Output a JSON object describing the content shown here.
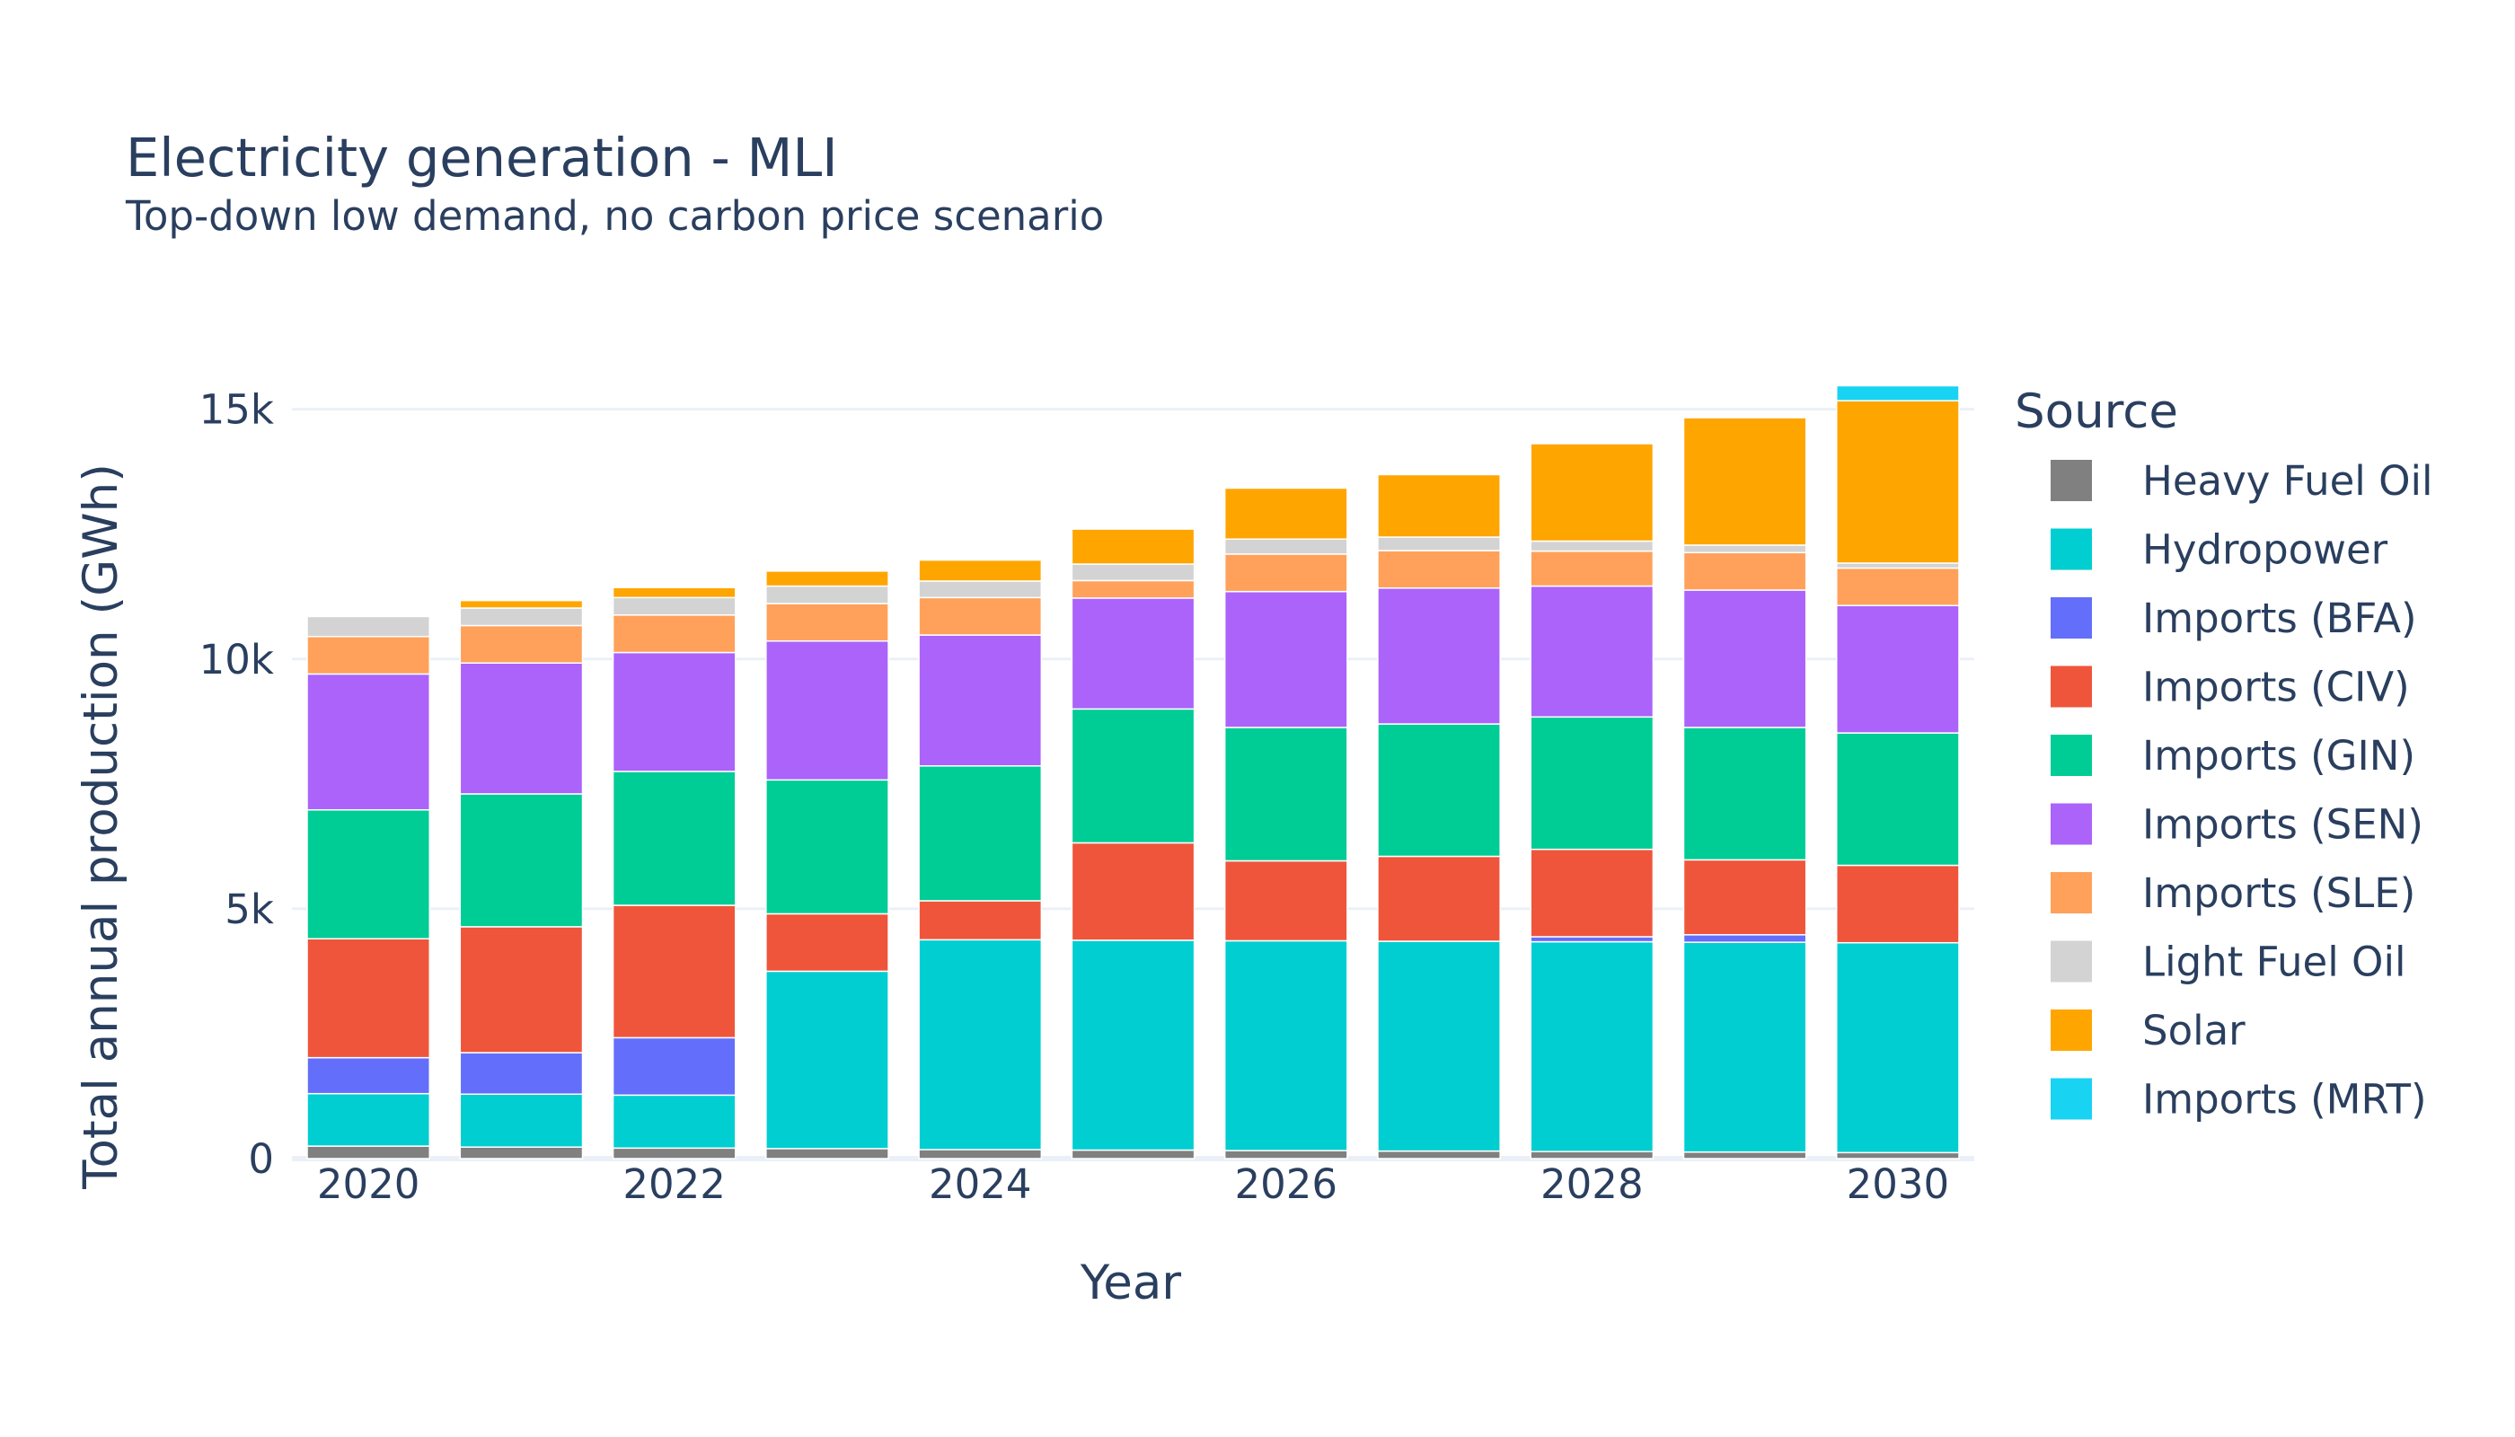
{
  "chart_data": {
    "type": "bar",
    "barmode": "stack",
    "title": "Electricity generation - MLI",
    "subtitle": "Top-down low demand, no carbon price scenario",
    "xlabel": "Year",
    "ylabel": "Total annual production (GWh)",
    "ylim": [
      0,
      16000
    ],
    "yticks": [
      0,
      5000,
      10000,
      15000
    ],
    "ytick_labels": [
      "0",
      "5k",
      "10k",
      "15k"
    ],
    "xtick_labels": [
      "2020",
      "2022",
      "2024",
      "2026",
      "2028",
      "2030"
    ],
    "grid": true,
    "legend_title": "Source",
    "legend_position": "right",
    "categories": [
      "2020",
      "2021",
      "2022",
      "2023",
      "2024",
      "2025",
      "2026",
      "2027",
      "2028",
      "2029",
      "2030"
    ],
    "series": [
      {
        "name": "Heavy Fuel Oil",
        "color": "#808080",
        "values": [
          250,
          230,
          210,
          200,
          180,
          170,
          160,
          150,
          140,
          130,
          120
        ]
      },
      {
        "name": "Hydropower",
        "color": "#00CED1",
        "values": [
          1050,
          1060,
          1060,
          3550,
          4200,
          4200,
          4200,
          4200,
          4200,
          4200,
          4200
        ]
      },
      {
        "name": "Imports (BFA)",
        "color": "#636EFA",
        "values": [
          720,
          830,
          1150,
          0,
          0,
          0,
          0,
          0,
          100,
          150,
          0
        ]
      },
      {
        "name": "Imports (CIV)",
        "color": "#EF553B",
        "values": [
          2380,
          2520,
          2650,
          1150,
          780,
          1950,
          1600,
          1700,
          1750,
          1500,
          1550
        ]
      },
      {
        "name": "Imports (GIN)",
        "color": "#00CC96",
        "values": [
          2580,
          2660,
          2680,
          2680,
          2700,
          2680,
          2670,
          2650,
          2650,
          2650,
          2650
        ]
      },
      {
        "name": "Imports (SEN)",
        "color": "#AB63FA",
        "values": [
          2720,
          2620,
          2380,
          2780,
          2620,
          2220,
          2720,
          2720,
          2620,
          2750,
          2550
        ]
      },
      {
        "name": "Imports (SLE)",
        "color": "#FFA15A",
        "values": [
          750,
          750,
          750,
          750,
          750,
          350,
          750,
          750,
          700,
          750,
          750
        ]
      },
      {
        "name": "Light Fuel Oil",
        "color": "#D3D3D3",
        "values": [
          400,
          350,
          350,
          350,
          330,
          330,
          300,
          270,
          200,
          150,
          100
        ]
      },
      {
        "name": "Solar",
        "color": "#FFA500",
        "values": [
          0,
          150,
          200,
          300,
          420,
          700,
          1020,
          1250,
          1950,
          2550,
          3250
        ]
      },
      {
        "name": "Imports (MRT)",
        "color": "#19D3F3",
        "values": [
          0,
          0,
          0,
          0,
          0,
          0,
          0,
          0,
          0,
          0,
          300
        ]
      }
    ]
  }
}
